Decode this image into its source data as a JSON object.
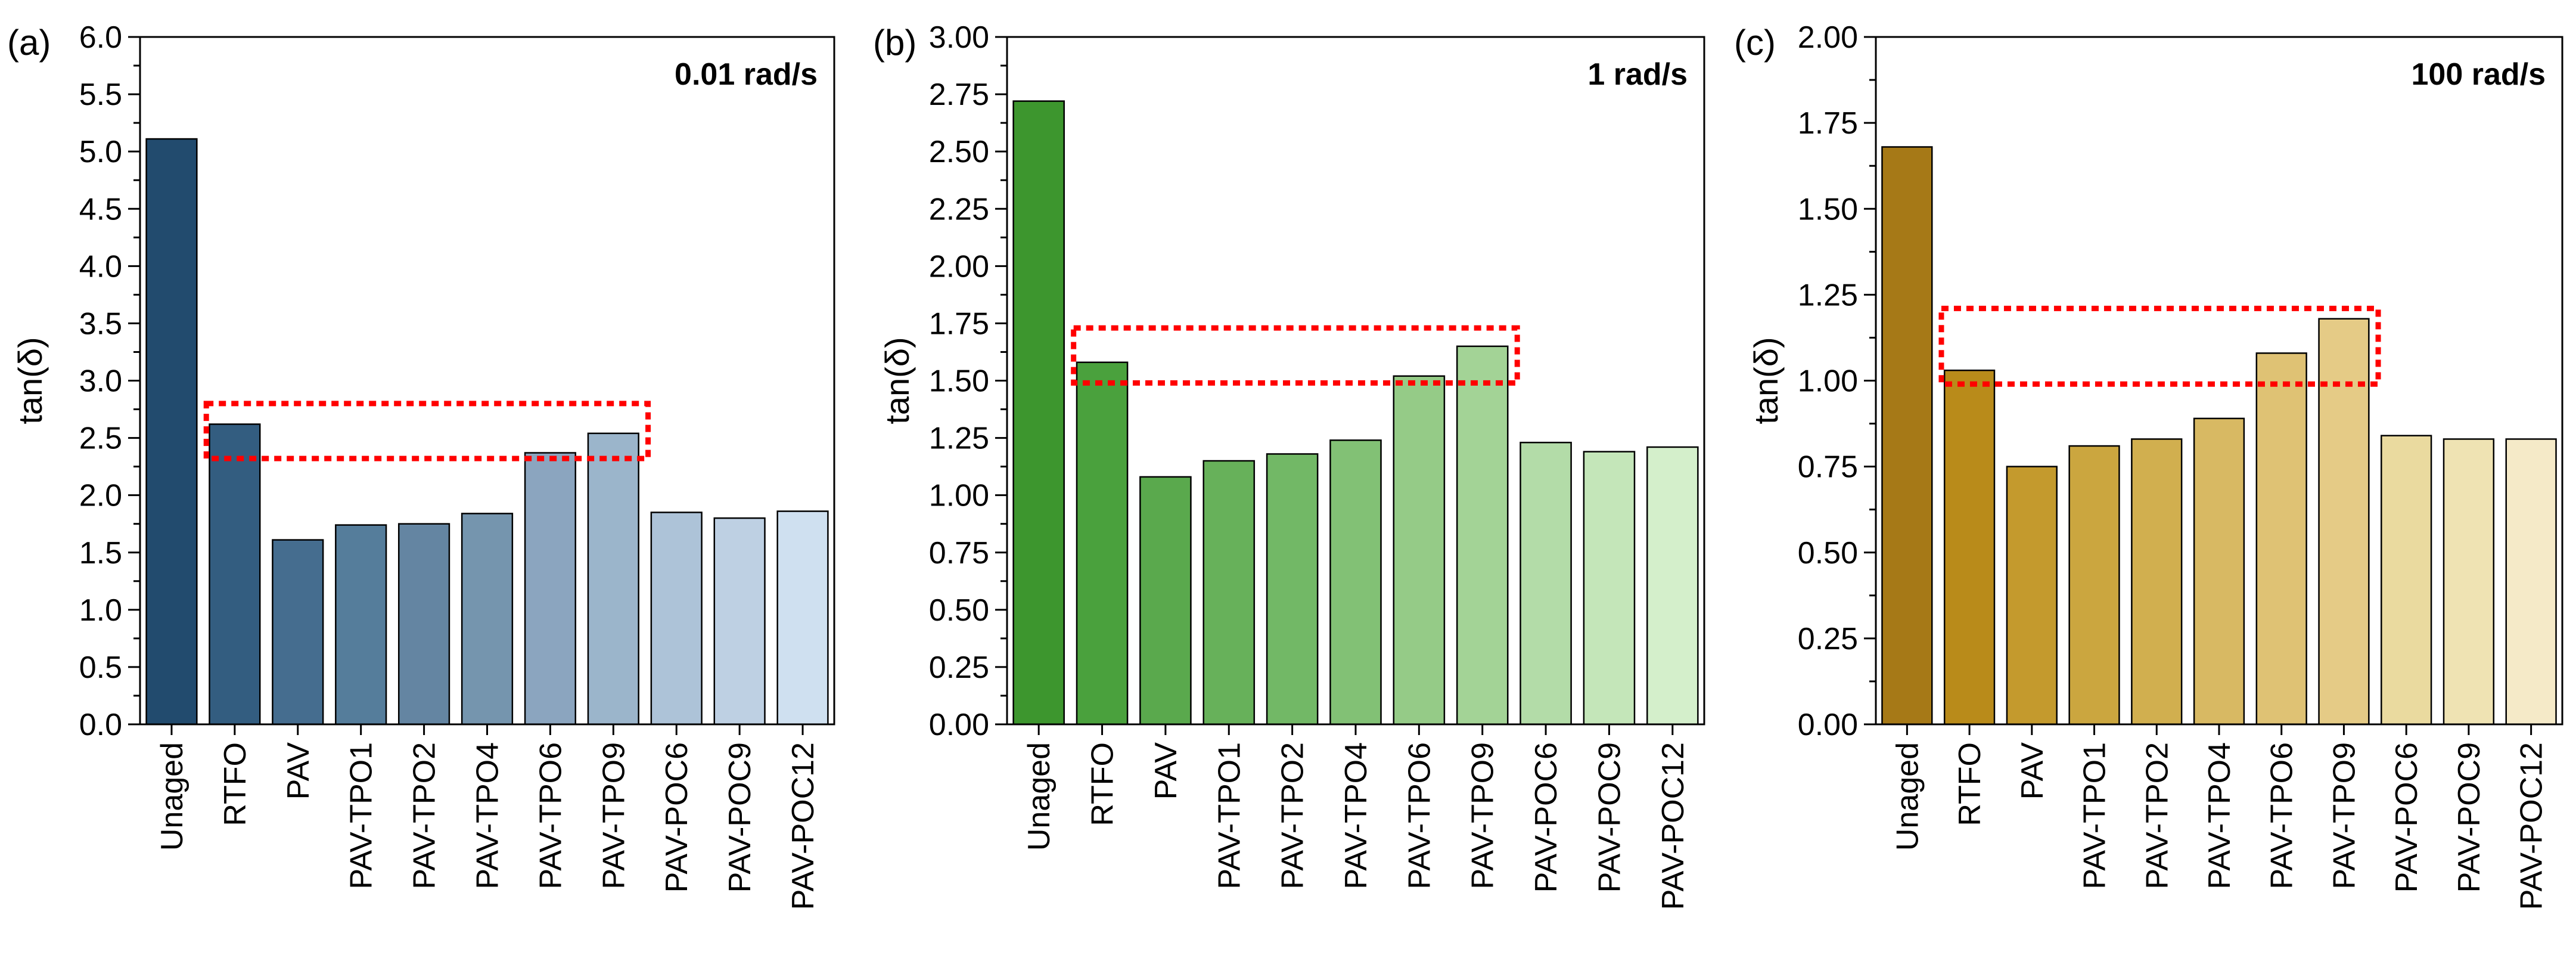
{
  "figure": {
    "categories": [
      "Unaged",
      "RTFO",
      "PAV",
      "PAV-TPO1",
      "PAV-TPO2",
      "PAV-TPO4",
      "PAV-TPO6",
      "PAV-TPO9",
      "PAV-POC6",
      "PAV-POC9",
      "PAV-POC12"
    ]
  },
  "chart_data": [
    {
      "type": "bar",
      "panel": "(a)",
      "annotation": "0.01 rad/s",
      "ylabel": "tan(δ)",
      "ylim": [
        0,
        6.0
      ],
      "yticks": [
        "0.0",
        "0.5",
        "1.0",
        "1.5",
        "2.0",
        "2.5",
        "3.0",
        "3.5",
        "4.0",
        "4.5",
        "5.0",
        "5.5",
        "6.0"
      ],
      "categories": [
        "Unaged",
        "RTFO",
        "PAV",
        "PAV-TPO1",
        "PAV-TPO2",
        "PAV-TPO4",
        "PAV-TPO6",
        "PAV-TPO9",
        "PAV-POC6",
        "PAV-POC9",
        "PAV-POC12"
      ],
      "values": [
        5.11,
        2.62,
        1.61,
        1.74,
        1.75,
        1.84,
        2.37,
        2.54,
        1.85,
        1.8,
        1.86
      ],
      "colors": [
        "#224b6e",
        "#335d80",
        "#456d8f",
        "#557d9b",
        "#6485a2",
        "#7595ae",
        "#8ba5bf",
        "#9bb5cb",
        "#adc3d8",
        "#bed0e3",
        "#cfe0f0"
      ],
      "highlight_box": {
        "from_category": "RTFO",
        "to_category": "PAV-TPO9",
        "y_range": [
          2.32,
          2.8
        ],
        "color": "#ff0000"
      },
      "grid": false
    },
    {
      "type": "bar",
      "panel": "(b)",
      "annotation": "1 rad/s",
      "ylabel": "tan(δ)",
      "ylim": [
        0,
        3.0
      ],
      "yticks": [
        "0.00",
        "0.25",
        "0.50",
        "0.75",
        "1.00",
        "1.25",
        "1.50",
        "1.75",
        "2.00",
        "2.25",
        "2.50",
        "2.75",
        "3.00"
      ],
      "categories": [
        "Unaged",
        "RTFO",
        "PAV",
        "PAV-TPO1",
        "PAV-TPO2",
        "PAV-TPO4",
        "PAV-TPO6",
        "PAV-TPO9",
        "PAV-POC6",
        "PAV-POC9",
        "PAV-POC12"
      ],
      "values": [
        2.72,
        1.58,
        1.08,
        1.15,
        1.18,
        1.24,
        1.52,
        1.65,
        1.23,
        1.19,
        1.21
      ],
      "colors": [
        "#3d962e",
        "#4aa13d",
        "#5aa94d",
        "#67b15a",
        "#72b866",
        "#82c175",
        "#95cb87",
        "#a3d396",
        "#b3dca8",
        "#c4e6b9",
        "#d4efcb"
      ],
      "highlight_box": {
        "from_category": "RTFO",
        "to_category": "PAV-TPO9",
        "y_range": [
          1.49,
          1.73
        ],
        "color": "#ff0000"
      },
      "grid": false
    },
    {
      "type": "bar",
      "panel": "(c)",
      "annotation": "100 rad/s",
      "ylabel": "tan(δ)",
      "ylim": [
        0,
        2.0
      ],
      "yticks": [
        "0.00",
        "0.25",
        "0.50",
        "0.75",
        "1.00",
        "1.25",
        "1.50",
        "1.75",
        "2.00"
      ],
      "categories": [
        "Unaged",
        "RTFO",
        "PAV",
        "PAV-TPO1",
        "PAV-TPO2",
        "PAV-TPO4",
        "PAV-TPO6",
        "PAV-TPO9",
        "PAV-POC6",
        "PAV-POC9",
        "PAV-POC12"
      ],
      "values": [
        1.68,
        1.03,
        0.75,
        0.81,
        0.83,
        0.89,
        1.08,
        1.18,
        0.84,
        0.83,
        0.83
      ],
      "colors": [
        "#a67917",
        "#b98b1a",
        "#c49a2d",
        "#cba63f",
        "#d1af4f",
        "#d8b963",
        "#dfc274",
        "#e5cb86",
        "#eada9f",
        "#efe3b3",
        "#f5eac8"
      ],
      "highlight_box": {
        "from_category": "RTFO",
        "to_category": "PAV-TPO9",
        "y_range": [
          0.99,
          1.21
        ],
        "color": "#ff0000"
      },
      "grid": false
    }
  ]
}
